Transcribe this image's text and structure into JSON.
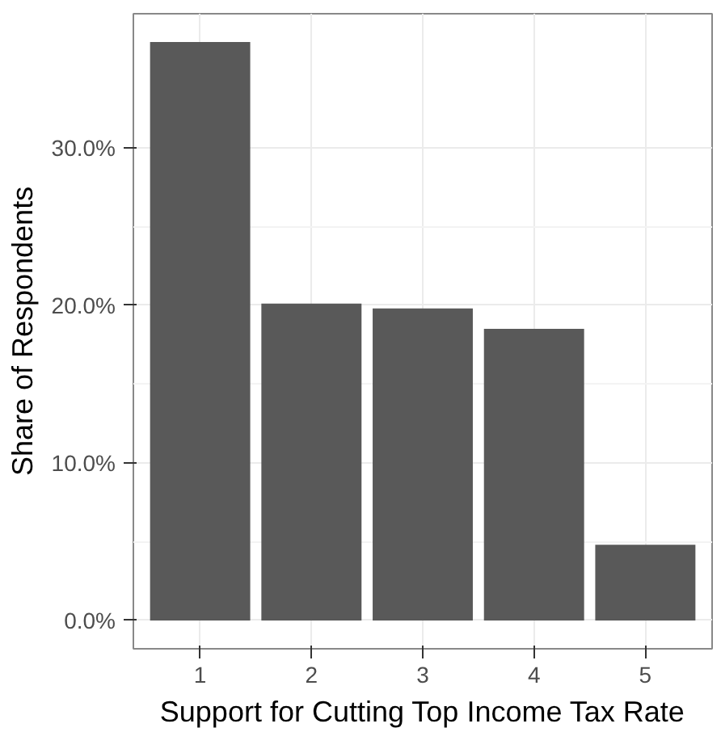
{
  "chart_data": {
    "type": "bar",
    "xlabel": "Support for Cutting Top Income Tax Rate",
    "ylabel": "Share of Respondents",
    "categories": [
      "1",
      "2",
      "3",
      "4",
      "5"
    ],
    "values": [
      36.7,
      20.1,
      19.8,
      18.5,
      4.8
    ],
    "color": "#595959",
    "ylim": [
      -1.8,
      38.5
    ],
    "yticks": [
      {
        "value": 0,
        "label": "0.0%"
      },
      {
        "value": 10,
        "label": "10.0%"
      },
      {
        "value": 20,
        "label": "20.0%"
      },
      {
        "value": 30,
        "label": "30.0%"
      }
    ],
    "grid": true
  }
}
